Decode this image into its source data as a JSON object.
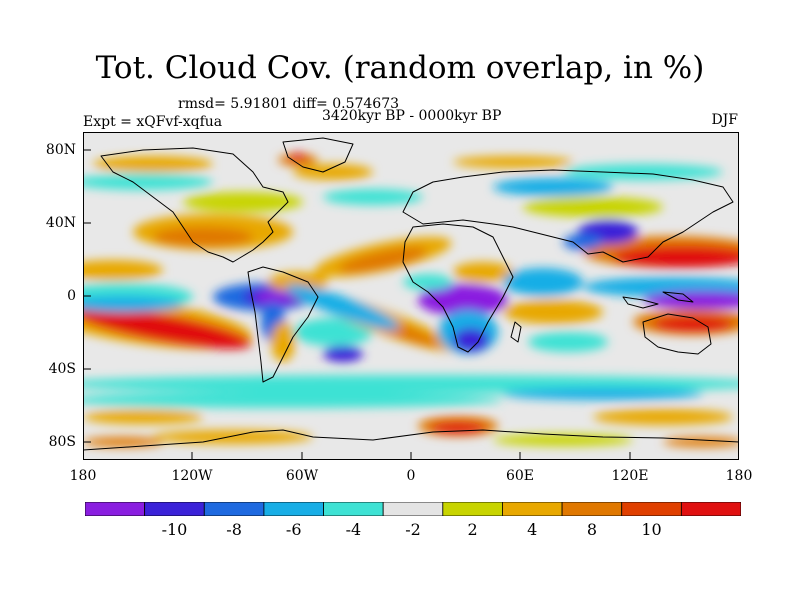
{
  "title": "Tot. Cloud Cov. (random overlap, in %)",
  "stats": "rmsd= 5.91801 diff= 0.574673",
  "period": "3420kyr BP - 0000kyr BP",
  "experiment": "Expt = xQFvf-xqfua",
  "season": "DJF",
  "map": {
    "lat_ticks": [
      "80N",
      "40N",
      "0",
      "40S",
      "80S"
    ],
    "lon_ticks": [
      "180",
      "120W",
      "60W",
      "0",
      "60E",
      "120E",
      "180"
    ]
  },
  "colorbar": {
    "colors": [
      "#8a1ee0",
      "#3b22d8",
      "#1f6ae0",
      "#18aee6",
      "#3ee2d4",
      "#e4e4e4",
      "#c8d400",
      "#e8a800",
      "#e07800",
      "#e04000",
      "#e01010"
    ],
    "labels": [
      "-10",
      "-8",
      "-6",
      "-4",
      "-2",
      "2",
      "4",
      "8",
      "10"
    ]
  }
}
